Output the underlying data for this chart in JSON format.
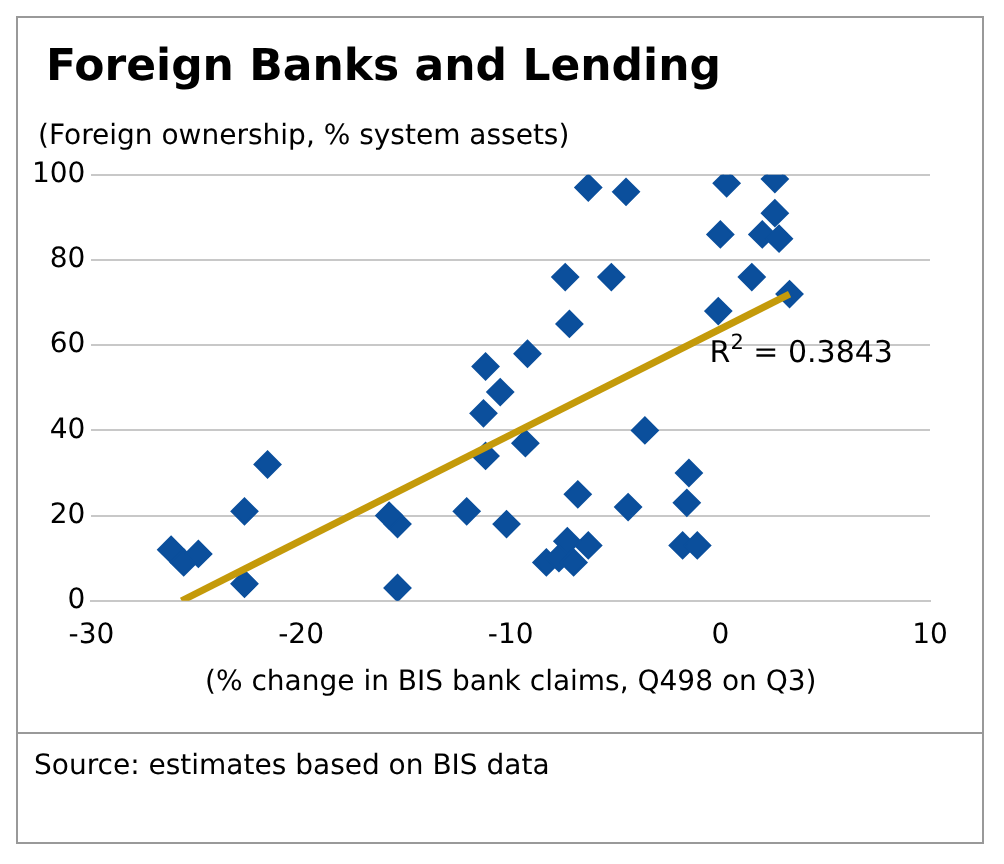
{
  "chart_data": {
    "type": "scatter",
    "title": "Foreign Banks and Lending",
    "ylabel": "(Foreign ownership, % system assets)",
    "xlabel": "(% change in BIS bank claims, Q498 on Q3)",
    "annotations": [
      "R$^{2}$ = 0.3843",
      "Source: estimates based on BIS data"
    ],
    "xlim": [
      -30,
      10
    ],
    "xticks": [
      -30,
      -20,
      -10,
      0,
      10
    ],
    "ylim": [
      0,
      100
    ],
    "yticks": [
      0,
      20,
      40,
      60,
      80,
      100
    ],
    "grid": "y",
    "marker": "diamond",
    "legend": false,
    "series": [
      {
        "color": "#0b4f9c",
        "x": [
          -26.2,
          -25.6,
          -24.9,
          -22.7,
          -22.7,
          -21.6,
          -15.4,
          -15.4,
          -15.8,
          -12.1,
          -11.2,
          -10.5,
          -11.3,
          -11.2,
          -10.2,
          -9.3,
          -9.2,
          -7.4,
          -5.2,
          -7.2,
          -6.8,
          -4.4,
          -3.6,
          -1.5,
          -1.6,
          -1.8,
          -1.1,
          -6.3,
          -7.3,
          -8.3,
          -7.7,
          -7,
          0,
          1.5,
          -0.1,
          3.3,
          2.6,
          2,
          2.6,
          0.3,
          -6.3,
          -4.5,
          2.8
        ],
        "values": [
          12,
          9,
          11,
          4,
          21,
          32,
          18,
          3,
          20,
          21,
          55,
          49,
          44,
          34,
          18,
          37,
          58,
          76,
          76,
          65,
          25,
          22,
          40,
          30,
          23,
          13,
          13,
          13,
          14,
          9,
          10,
          9,
          86,
          76,
          68,
          72,
          91,
          86,
          99,
          98,
          97,
          96,
          85
        ]
      },
      {
        "type": "line",
        "color": "#c49a0a",
        "marker": "none",
        "x": [
          -25.7,
          3.3
        ],
        "values": [
          0,
          72
        ]
      }
    ]
  }
}
